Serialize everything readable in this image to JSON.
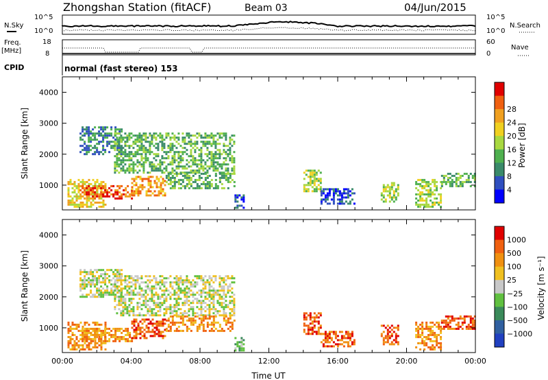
{
  "header": {
    "station": "Zhongshan Station (fitACF)",
    "beam": "Beam 03",
    "date": "04/Jun/2015"
  },
  "noise_panel": {
    "left_label": "N.Sky",
    "right_label": "N.Search",
    "left_ticks": [
      "10^5",
      "10^0"
    ],
    "right_ticks": [
      "10^5",
      "10^0"
    ]
  },
  "freq_panel": {
    "left_label_1": "Freq.",
    "left_label_2": "[MHz]",
    "left_ticks": [
      "18",
      "8"
    ],
    "right_label": "Nave",
    "right_ticks": [
      "60",
      "0"
    ]
  },
  "cpid": {
    "label": "CPID",
    "value": "normal (fast stereo) 153"
  },
  "chart_data": [
    {
      "type": "heatmap",
      "name": "Power",
      "ylabel": "Slant Range [km]",
      "xlabel": "",
      "xlim": [
        0,
        24
      ],
      "ylim": [
        200,
        4500
      ],
      "y_ticks": [
        "1000",
        "2000",
        "3000",
        "4000"
      ],
      "colorbar": {
        "label": "Power [dB]",
        "ticks": [
          "4",
          "8",
          "12",
          "16",
          "20",
          "24",
          "28"
        ],
        "colors": [
          "#0000ff",
          "#2f4fbf",
          "#3a8a6a",
          "#4fb04f",
          "#a8d840",
          "#f0d020",
          "#f0a020",
          "#f06010",
          "#e00000"
        ]
      },
      "regions": [
        {
          "t": [
            0.3,
            2.5
          ],
          "r": [
            300,
            1200
          ],
          "level": 5
        },
        {
          "t": [
            1.0,
            4.0
          ],
          "r": [
            600,
            1000
          ],
          "level": 7
        },
        {
          "t": [
            4.0,
            6.0
          ],
          "r": [
            700,
            1300
          ],
          "level": 6
        },
        {
          "t": [
            1.0,
            3.5
          ],
          "r": [
            2000,
            2900
          ],
          "level": 2
        },
        {
          "t": [
            3.0,
            10.0
          ],
          "r": [
            1400,
            2700
          ],
          "level": 3
        },
        {
          "t": [
            6.0,
            10.0
          ],
          "r": [
            900,
            1400
          ],
          "level": 3
        },
        {
          "t": [
            10.0,
            10.5
          ],
          "r": [
            300,
            700
          ],
          "level": 1
        },
        {
          "t": [
            14.0,
            15.0
          ],
          "r": [
            800,
            1500
          ],
          "level": 4
        },
        {
          "t": [
            15.0,
            17.0
          ],
          "r": [
            400,
            900
          ],
          "level": 1
        },
        {
          "t": [
            18.5,
            19.5
          ],
          "r": [
            500,
            1100
          ],
          "level": 4
        },
        {
          "t": [
            20.5,
            22.0
          ],
          "r": [
            300,
            1200
          ],
          "level": 4
        },
        {
          "t": [
            22.0,
            24.0
          ],
          "r": [
            1000,
            1400
          ],
          "level": 3
        }
      ]
    },
    {
      "type": "heatmap",
      "name": "Velocity",
      "ylabel": "Slant Range [km]",
      "xlabel": "Time UT",
      "xlim": [
        0,
        24
      ],
      "ylim": [
        200,
        4500
      ],
      "x_ticks": [
        "00:00",
        "04:00",
        "08:00",
        "12:00",
        "16:00",
        "20:00",
        "00:00"
      ],
      "y_ticks": [
        "1000",
        "2000",
        "3000",
        "4000"
      ],
      "colorbar": {
        "label": "Velocity [m s⁻¹]",
        "ticks": [
          "1000",
          "500",
          "100",
          "25",
          "−25",
          "−100",
          "−500",
          "−1000"
        ],
        "colors": [
          "#2040c0",
          "#3060a0",
          "#3a8a5a",
          "#60c040",
          "#c8c8c8",
          "#f0c020",
          "#f09010",
          "#f06010",
          "#e00000"
        ]
      },
      "regions": [
        {
          "t": [
            0.3,
            2.5
          ],
          "r": [
            300,
            1200
          ],
          "level": 6
        },
        {
          "t": [
            1.0,
            4.0
          ],
          "r": [
            600,
            1000
          ],
          "level": 6
        },
        {
          "t": [
            4.0,
            6.0
          ],
          "r": [
            700,
            1300
          ],
          "level": 7
        },
        {
          "t": [
            1.0,
            3.5
          ],
          "r": [
            2000,
            2900
          ],
          "level": 4
        },
        {
          "t": [
            3.0,
            10.0
          ],
          "r": [
            1400,
            2700
          ],
          "level": 4
        },
        {
          "t": [
            6.0,
            10.0
          ],
          "r": [
            900,
            1400
          ],
          "level": 6
        },
        {
          "t": [
            10.0,
            10.5
          ],
          "r": [
            300,
            700
          ],
          "level": 3
        },
        {
          "t": [
            14.0,
            15.0
          ],
          "r": [
            800,
            1500
          ],
          "level": 7
        },
        {
          "t": [
            15.0,
            17.0
          ],
          "r": [
            400,
            900
          ],
          "level": 7
        },
        {
          "t": [
            18.5,
            19.5
          ],
          "r": [
            500,
            1100
          ],
          "level": 7
        },
        {
          "t": [
            20.5,
            22.0
          ],
          "r": [
            300,
            1200
          ],
          "level": 6
        },
        {
          "t": [
            22.0,
            24.0
          ],
          "r": [
            1000,
            1400
          ],
          "level": 7
        }
      ]
    }
  ]
}
